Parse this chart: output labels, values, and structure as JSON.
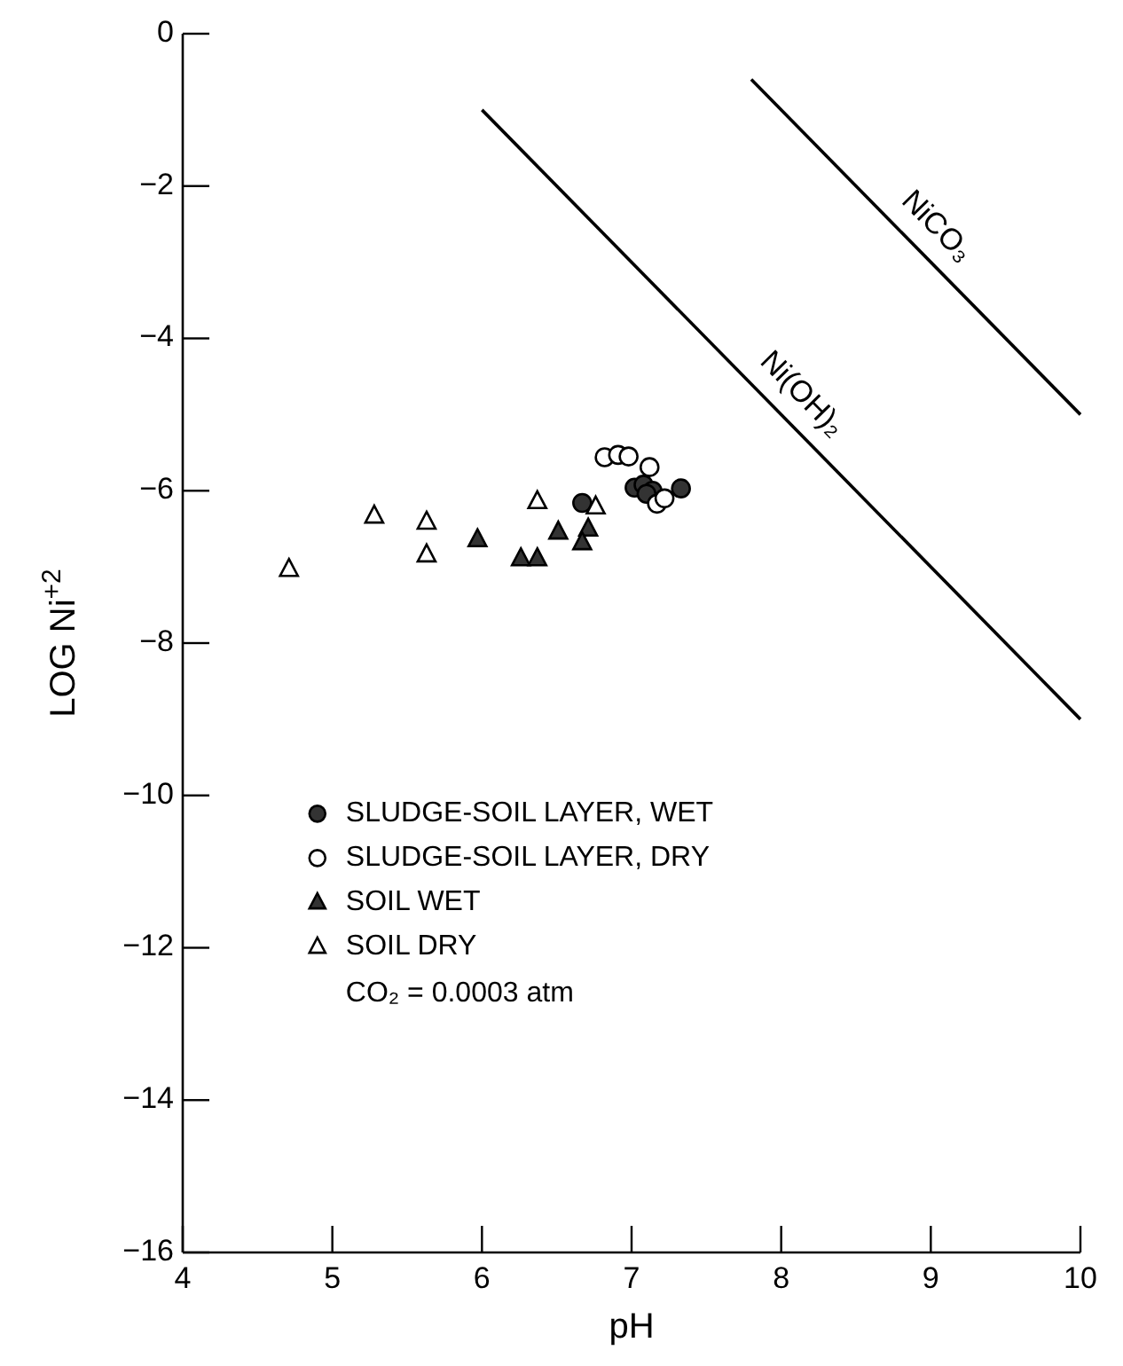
{
  "chart_data": {
    "type": "scatter",
    "xlabel": "pH",
    "ylabel": "LOG Ni$^{+2}$",
    "xlim": [
      4,
      10
    ],
    "ylim": [
      -16,
      0
    ],
    "xticks": [
      4,
      5,
      6,
      7,
      8,
      9,
      10
    ],
    "yticks": [
      0,
      -2,
      -4,
      -6,
      -8,
      -10,
      -12,
      -14,
      -16
    ],
    "grid": false,
    "legend": "left",
    "annotations": [
      "CO₂ = 0.0003 atm"
    ],
    "series": [
      {
        "name": "SLUDGE-SOIL LAYER, WET",
        "color": "#333333",
        "marker": "circle",
        "x": [
          7.02,
          7.08,
          7.14,
          7.1,
          7.33,
          6.67
        ],
        "values": [
          -5.96,
          -5.92,
          -6.0,
          -6.04,
          -5.97,
          -6.16
        ]
      },
      {
        "name": "SLUDGE-SOIL LAYER, DRY",
        "color": "#ffffff",
        "marker": "circle",
        "x": [
          6.82,
          6.91,
          6.98,
          7.12,
          7.17,
          7.22
        ],
        "values": [
          -5.56,
          -5.53,
          -5.55,
          -5.69,
          -6.17,
          -6.1
        ]
      },
      {
        "name": "SOIL WET",
        "color": "#333333",
        "marker": "triangle",
        "x": [
          5.97,
          6.26,
          6.37,
          6.51,
          6.71,
          6.67
        ],
        "values": [
          -6.64,
          -6.89,
          -6.89,
          -6.54,
          -6.5,
          -6.68
        ]
      },
      {
        "name": "SOIL DRY",
        "color": "#ffffff",
        "marker": "triangle",
        "x": [
          4.71,
          5.28,
          5.63,
          5.63,
          6.37,
          6.76
        ],
        "values": [
          -7.03,
          -6.33,
          -6.41,
          -6.84,
          -6.14,
          -6.21
        ]
      },
      {
        "type": "line",
        "name": "Ni(OH)₂",
        "color": "#000000",
        "marker": "none",
        "x": [
          6,
          10
        ],
        "values": [
          -1,
          -9
        ]
      },
      {
        "type": "line",
        "name": "NiCO₃",
        "color": "#000000",
        "marker": "none",
        "x": [
          7.8,
          10
        ],
        "values": [
          -0.6,
          -5
        ]
      }
    ]
  }
}
